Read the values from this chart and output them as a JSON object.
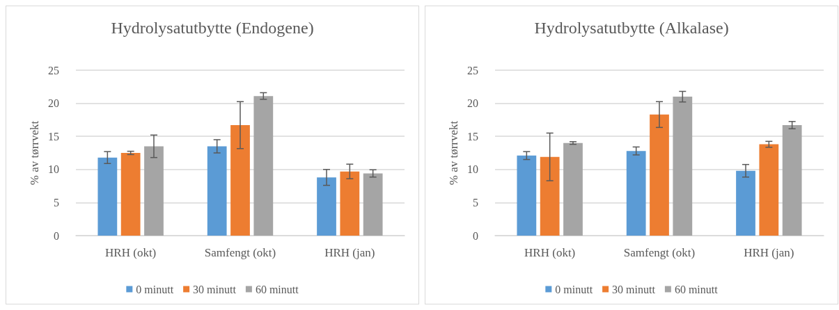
{
  "chart_data": [
    {
      "type": "bar",
      "title": "Hydrolysatutbytte (Endogene)",
      "ylabel": "% av tørrvekt",
      "categories": [
        "HRH (okt)",
        "Samfengt (okt)",
        "HRH (jan)"
      ],
      "ylim": [
        0,
        25
      ],
      "yticks": [
        0,
        5,
        10,
        15,
        20,
        25
      ],
      "grid": "y",
      "legend": "bottom",
      "series": [
        {
          "name": "0 minutt",
          "color": "#5b9bd5",
          "values": [
            11.8,
            13.5,
            8.8
          ],
          "errors": [
            0.9,
            1.0,
            1.2
          ]
        },
        {
          "name": "30 minutt",
          "color": "#ed7d31",
          "values": [
            12.5,
            16.7,
            9.7
          ],
          "errors": [
            0.25,
            3.55,
            1.1
          ]
        },
        {
          "name": "60 minutt",
          "color": "#a5a5a5",
          "values": [
            13.5,
            21.1,
            9.4
          ],
          "errors": [
            1.7,
            0.5,
            0.55
          ]
        }
      ]
    },
    {
      "type": "bar",
      "title": "Hydrolysatutbytte (Alkalase)",
      "ylabel": "% av tørrvekt",
      "categories": [
        "HRH (okt)",
        "Samfengt (okt)",
        "HRH (jan)"
      ],
      "ylim": [
        0,
        25
      ],
      "yticks": [
        0,
        5,
        10,
        15,
        20,
        25
      ],
      "grid": "y",
      "legend": "bottom",
      "series": [
        {
          "name": "0 minutt",
          "color": "#5b9bd5",
          "values": [
            12.1,
            12.8,
            9.8
          ],
          "errors": [
            0.6,
            0.6,
            0.95
          ]
        },
        {
          "name": "30 minutt",
          "color": "#ed7d31",
          "values": [
            11.9,
            18.3,
            13.8
          ],
          "errors": [
            3.6,
            1.95,
            0.45
          ]
        },
        {
          "name": "60 minutt",
          "color": "#a5a5a5",
          "values": [
            14.0,
            21.0,
            16.7
          ],
          "errors": [
            0.2,
            0.8,
            0.55
          ]
        }
      ]
    }
  ]
}
